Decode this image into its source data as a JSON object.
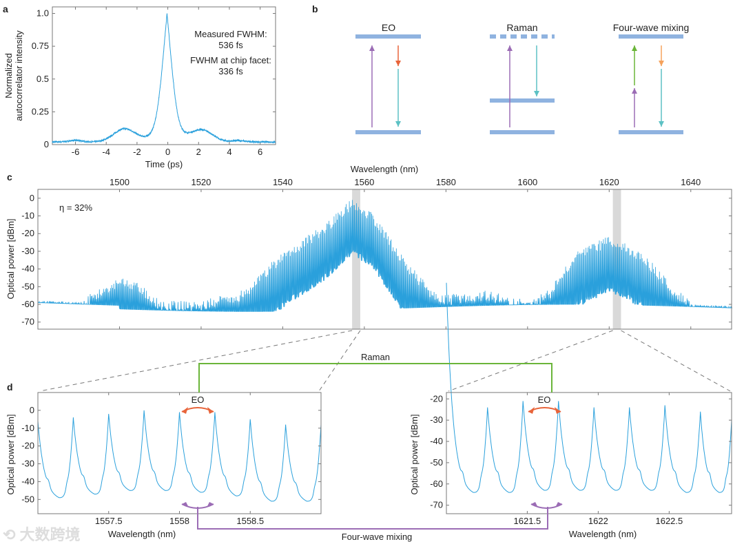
{
  "panel_labels": {
    "a": "a",
    "b": "b",
    "c": "c",
    "d": "d"
  },
  "colors": {
    "curve": "#2aa0dc",
    "level": "#8fb3e0",
    "purple": "#9b6cb5",
    "teal": "#5cc1c4",
    "red_orange": "#e8643a",
    "light_orange": "#f5a25c",
    "green": "#6ab539",
    "shade": "#d9d9d9"
  },
  "watermark": "大数跨境",
  "chart_data": [
    {
      "id": "a",
      "type": "line",
      "xlabel": "Time (ps)",
      "ylabel": "Normalized autocorrelator intensity",
      "ylabel_lines": [
        "Normalized",
        "autocorrelator intensity"
      ],
      "xlim": [
        -7.5,
        7
      ],
      "ylim": [
        0,
        1.05
      ],
      "xticks": [
        "-6",
        "-4",
        "-2",
        "0",
        "2",
        "4",
        "6"
      ],
      "yticks": [
        "0",
        "0.25",
        "0.5",
        "0.75",
        "1.0"
      ],
      "annotations": [
        "Measured FWHM:",
        "536 fs",
        "FWHM at chip facet:",
        "336 fs"
      ],
      "series": [
        {
          "name": "autocorrelation",
          "peak_x": -0.05,
          "peak_y": 1.0,
          "shoulders": [
            [
              -2.8,
              0.12
            ],
            [
              2.2,
              0.11
            ]
          ],
          "baseline": 0.02
        }
      ]
    },
    {
      "id": "b",
      "type": "diagram",
      "titles": [
        "EO",
        "Raman",
        "Four-wave mixing"
      ]
    },
    {
      "id": "c",
      "type": "line",
      "xlabel": "Wavelength (nm)",
      "ylabel": "Optical power [dBm]",
      "xlim": [
        1480,
        1650
      ],
      "ylim": [
        -74,
        5
      ],
      "xticks": [
        "1500",
        "1520",
        "1540",
        "1560",
        "1580",
        "1600",
        "1620",
        "1640"
      ],
      "yticks": [
        "0",
        "-10",
        "-20",
        "-30",
        "-40",
        "-50",
        "-60",
        "-70"
      ],
      "annotation": "η = 32%",
      "highlighted_ranges_nm": [
        [
          1557,
          1559
        ],
        [
          1620.9,
          1622.9
        ]
      ],
      "envelope": [
        [
          1480,
          -60
        ],
        [
          1490,
          -58
        ],
        [
          1500,
          -44
        ],
        [
          1505,
          -48
        ],
        [
          1510,
          -58
        ],
        [
          1520,
          -58
        ],
        [
          1530,
          -52
        ],
        [
          1540,
          -30
        ],
        [
          1550,
          -15
        ],
        [
          1557,
          0
        ],
        [
          1562,
          -8
        ],
        [
          1570,
          -35
        ],
        [
          1578,
          -55
        ],
        [
          1590,
          -52
        ],
        [
          1600,
          -58
        ],
        [
          1605,
          -52
        ],
        [
          1612,
          -30
        ],
        [
          1620,
          -21
        ],
        [
          1628,
          -30
        ],
        [
          1635,
          -48
        ],
        [
          1640,
          -58
        ],
        [
          1650,
          -62
        ]
      ],
      "noise_floor": -62
    },
    {
      "id": "d-left",
      "type": "line",
      "xlabel": "Wavelength (nm)",
      "ylabel": "Optical power [dBm]",
      "xlim": [
        1557,
        1559
      ],
      "ylim": [
        -58,
        10
      ],
      "xticks": [
        "1557.5",
        "1558",
        "1558.5"
      ],
      "yticks": [
        "0",
        "-10",
        "-20",
        "-30",
        "-40",
        "-50"
      ],
      "annotation": "EO",
      "peaks": [
        [
          1557.0,
          -6
        ],
        [
          1557.25,
          -4
        ],
        [
          1557.5,
          -2
        ],
        [
          1557.75,
          0
        ],
        [
          1558.0,
          -1
        ],
        [
          1558.25,
          -1
        ],
        [
          1558.5,
          -5
        ],
        [
          1558.75,
          -8
        ],
        [
          1559.0,
          -8
        ]
      ],
      "troughs": [
        -49,
        -47,
        -45,
        -45,
        -46,
        -48,
        -51,
        -51
      ]
    },
    {
      "id": "d-right",
      "type": "line",
      "xlabel": "Wavelength (nm)",
      "ylabel": "Optical power [dBm]",
      "xlim": [
        1620.93,
        1622.94
      ],
      "ylim": [
        -74,
        -17
      ],
      "xticks": [
        "1621.5",
        "1622",
        "1622.5"
      ],
      "yticks": [
        "-20",
        "-30",
        "-40",
        "-50",
        "-60",
        "-70"
      ],
      "annotation": "EO",
      "peaks": [
        [
          1620.97,
          -23
        ],
        [
          1621.22,
          -24
        ],
        [
          1621.47,
          -21
        ],
        [
          1621.72,
          -21
        ],
        [
          1621.97,
          -24
        ],
        [
          1622.22,
          -24
        ],
        [
          1622.47,
          -23
        ],
        [
          1622.72,
          -26
        ],
        [
          1622.94,
          -30
        ]
      ],
      "troughs": [
        -64,
        -64,
        -63,
        -63,
        -63,
        -63,
        -64,
        -64
      ]
    }
  ],
  "connectors": {
    "raman": "Raman",
    "fwm": "Four-wave mixing"
  }
}
